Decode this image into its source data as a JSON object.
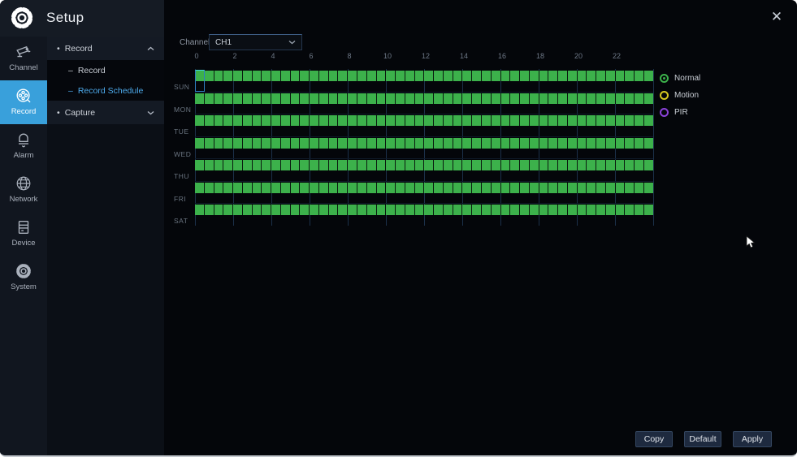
{
  "window": {
    "title": "Setup",
    "close_glyph": "✕"
  },
  "sidebar": {
    "items": [
      {
        "id": "channel",
        "label": "Channel",
        "icon": "camera",
        "selected": false
      },
      {
        "id": "record",
        "label": "Record",
        "icon": "film-reel",
        "selected": true
      },
      {
        "id": "alarm",
        "label": "Alarm",
        "icon": "bell",
        "selected": false
      },
      {
        "id": "network",
        "label": "Network",
        "icon": "globe",
        "selected": false
      },
      {
        "id": "device",
        "label": "Device",
        "icon": "server",
        "selected": false
      },
      {
        "id": "system",
        "label": "System",
        "icon": "gear",
        "selected": false
      }
    ]
  },
  "submenu": {
    "items": [
      {
        "id": "record-group",
        "marker": "•",
        "label": "Record",
        "type": "parent",
        "expanded": true,
        "selected": false
      },
      {
        "id": "record",
        "marker": "–",
        "label": "Record",
        "type": "child",
        "selected": false
      },
      {
        "id": "record-schedule",
        "marker": "–",
        "label": "Record Schedule",
        "type": "child",
        "selected": true
      },
      {
        "id": "capture-group",
        "marker": "•",
        "label": "Capture",
        "type": "parent",
        "expanded": false,
        "selected": false
      }
    ]
  },
  "channel_select": {
    "label": "Channel",
    "value": "CH1"
  },
  "schedule": {
    "hour_ticks": [
      "0",
      "2",
      "4",
      "6",
      "8",
      "10",
      "12",
      "14",
      "16",
      "18",
      "20",
      "22"
    ],
    "hours_per_day": 24,
    "cells_per_day": 48,
    "cell_types": {
      "normal": "#3cb14b",
      "motion": "#d6c821",
      "pir": "#8a42d8"
    },
    "days": [
      {
        "label": "SUN",
        "blocks": [
          {
            "type": "normal",
            "start": 0,
            "end": 48
          }
        ]
      },
      {
        "label": "MON",
        "blocks": [
          {
            "type": "normal",
            "start": 0,
            "end": 48
          }
        ]
      },
      {
        "label": "TUE",
        "blocks": [
          {
            "type": "normal",
            "start": 0,
            "end": 48
          }
        ]
      },
      {
        "label": "WED",
        "blocks": [
          {
            "type": "normal",
            "start": 0,
            "end": 48
          }
        ]
      },
      {
        "label": "THU",
        "blocks": [
          {
            "type": "normal",
            "start": 0,
            "end": 48
          }
        ]
      },
      {
        "label": "FRI",
        "blocks": [
          {
            "type": "normal",
            "start": 0,
            "end": 48
          }
        ]
      },
      {
        "label": "SAT",
        "blocks": [
          {
            "type": "normal",
            "start": 0,
            "end": 48
          }
        ]
      }
    ],
    "selected_cell": {
      "day_index": 0,
      "cell_index": 0
    }
  },
  "legend": {
    "options": [
      {
        "id": "normal",
        "label": "Normal",
        "color": "#3cb14b",
        "selected": true
      },
      {
        "id": "motion",
        "label": "Motion",
        "color": "#d6c821",
        "selected": false
      },
      {
        "id": "pir",
        "label": "PIR",
        "color": "#8a42d8",
        "selected": false
      }
    ]
  },
  "footer": {
    "buttons": [
      {
        "id": "copy",
        "label": "Copy"
      },
      {
        "id": "default",
        "label": "Default"
      },
      {
        "id": "apply",
        "label": "Apply"
      }
    ]
  },
  "colors": {
    "accent_blue": "#39a0db",
    "link_blue": "#4da9ea",
    "grid_green": "#3cb14b",
    "gridline_blue": "#1b3049",
    "highlight_cyan": "#3fd6d8"
  }
}
